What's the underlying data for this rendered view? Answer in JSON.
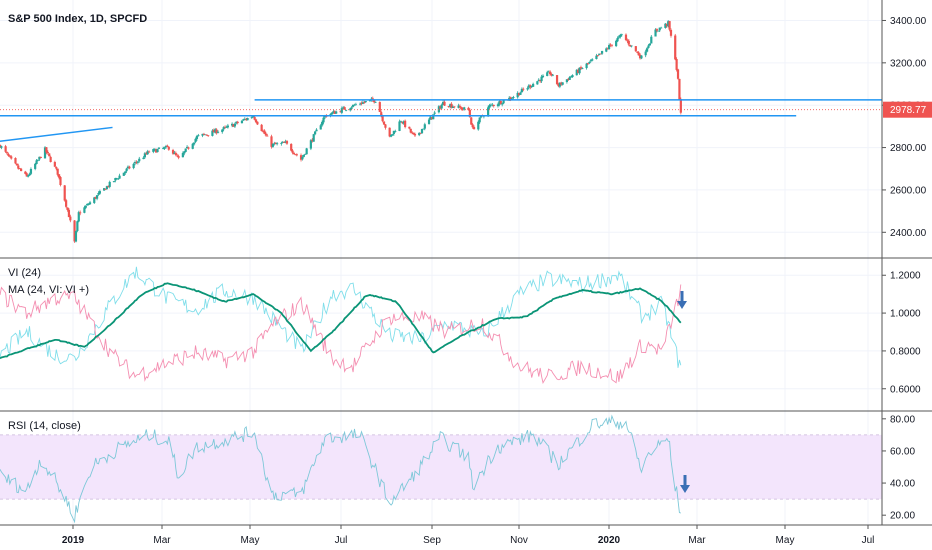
{
  "colors": {
    "up": "#26a69a",
    "down": "#ef5350",
    "trendline": "#2196f3",
    "vi_plus": "#80deea",
    "vi_minus": "#f48fb1",
    "ma": "#0a9476",
    "rsi": "#7ec8d8",
    "rsi_band": "#f3e5fc",
    "rsi_band_border": "#c9b6d8",
    "arrow": "#3a6fb5",
    "price_tag": "#ef5350",
    "grid": "#f0f3fa",
    "pane_border": "#555555"
  },
  "annotation_icons": [
    "arrow-down-icon",
    "arrow-down-icon"
  ],
  "chart_data": [
    {
      "type": "candlestick",
      "title": "S&P 500 Index, 1D, SPCFD",
      "y_ticks": [
        "3400.00",
        "3200.00",
        "3000.00",
        "2800.00",
        "2600.00",
        "2400.00"
      ],
      "ylim": [
        2340,
        3440
      ],
      "last_price": "2978.77",
      "x_ticks": [
        "2019",
        "Mar",
        "May",
        "Jul",
        "Sep",
        "Nov",
        "2020",
        "Mar",
        "May",
        "Jul"
      ],
      "xlim": [
        "2018-11-01",
        "2020-07-20"
      ],
      "anchors": [
        [
          "2018-11-01",
          2810
        ],
        [
          "2018-11-10",
          2730
        ],
        [
          "2018-11-20",
          2660
        ],
        [
          "2018-11-28",
          2740
        ],
        [
          "2018-12-03",
          2790
        ],
        [
          "2018-12-12",
          2680
        ],
        [
          "2018-12-20",
          2480
        ],
        [
          "2018-12-24",
          2351
        ],
        [
          "2018-12-27",
          2490
        ],
        [
          "2019-01-04",
          2540
        ],
        [
          "2019-01-15",
          2610
        ],
        [
          "2019-01-31",
          2700
        ],
        [
          "2019-02-15",
          2780
        ],
        [
          "2019-03-01",
          2800
        ],
        [
          "2019-03-08",
          2745
        ],
        [
          "2019-03-21",
          2850
        ],
        [
          "2019-04-10",
          2890
        ],
        [
          "2019-04-30",
          2950
        ],
        [
          "2019-05-13",
          2812
        ],
        [
          "2019-05-23",
          2820
        ],
        [
          "2019-06-03",
          2744
        ],
        [
          "2019-06-20",
          2950
        ],
        [
          "2019-07-15",
          3010
        ],
        [
          "2019-07-26",
          3025
        ],
        [
          "2019-08-05",
          2844
        ],
        [
          "2019-08-13",
          2930
        ],
        [
          "2019-08-23",
          2847
        ],
        [
          "2019-09-12",
          3010
        ],
        [
          "2019-09-30",
          2976
        ],
        [
          "2019-10-03",
          2887
        ],
        [
          "2019-10-15",
          2995
        ],
        [
          "2019-10-31",
          3037
        ],
        [
          "2019-11-27",
          3153
        ],
        [
          "2019-12-03",
          3093
        ],
        [
          "2019-12-31",
          3230
        ],
        [
          "2020-01-17",
          3330
        ],
        [
          "2020-01-31",
          3225
        ],
        [
          "2020-02-10",
          3352
        ],
        [
          "2020-02-19",
          3386
        ],
        [
          "2020-02-24",
          3225
        ],
        [
          "2020-02-26",
          3116
        ],
        [
          "2020-02-28",
          2954
        ]
      ],
      "trendlines": [
        {
          "from": [
            "2018-11-01",
            2830
          ],
          "to": [
            "2019-01-20",
            2895
          ]
        },
        {
          "from": [
            "2018-11-01",
            2950
          ],
          "to": [
            "2020-05-20",
            2950
          ]
        },
        {
          "from": [
            "2019-05-01",
            3025
          ],
          "to": [
            "2020-07-20",
            3025
          ]
        }
      ]
    },
    {
      "type": "line",
      "series": [
        {
          "name": "VI (24)",
          "indicator": "vi"
        },
        {
          "name": "MA (24, VI: VI +)",
          "indicator": "ma"
        }
      ],
      "y_ticks": [
        "1.2000",
        "1.0000",
        "0.8000",
        "0.6000"
      ],
      "ylim": [
        0.53,
        1.27
      ],
      "vi_plus_anchors": [
        [
          "2018-11-01",
          0.78
        ],
        [
          "2018-11-20",
          0.9
        ],
        [
          "2018-12-10",
          0.78
        ],
        [
          "2018-12-24",
          0.76
        ],
        [
          "2019-01-20",
          1.06
        ],
        [
          "2019-02-05",
          1.22
        ],
        [
          "2019-03-01",
          1.07
        ],
        [
          "2019-03-20",
          1.02
        ],
        [
          "2019-04-10",
          1.12
        ],
        [
          "2019-05-01",
          1.08
        ],
        [
          "2019-05-15",
          0.96
        ],
        [
          "2019-06-04",
          0.8
        ],
        [
          "2019-06-25",
          1.1
        ],
        [
          "2019-07-10",
          1.13
        ],
        [
          "2019-08-05",
          0.88
        ],
        [
          "2019-08-28",
          0.86
        ],
        [
          "2019-09-15",
          0.95
        ],
        [
          "2019-10-10",
          0.88
        ],
        [
          "2019-11-05",
          1.1
        ],
        [
          "2019-11-25",
          1.18
        ],
        [
          "2019-12-20",
          1.15
        ],
        [
          "2020-01-15",
          1.2
        ],
        [
          "2020-02-01",
          0.98
        ],
        [
          "2020-02-15",
          1.05
        ],
        [
          "2020-02-28",
          0.7
        ]
      ],
      "vi_minus_anchors": [
        [
          "2018-11-01",
          1.1
        ],
        [
          "2018-11-20",
          1.0
        ],
        [
          "2018-12-10",
          1.08
        ],
        [
          "2018-12-24",
          1.08
        ],
        [
          "2019-01-20",
          0.78
        ],
        [
          "2019-02-05",
          0.67
        ],
        [
          "2019-03-01",
          0.74
        ],
        [
          "2019-03-20",
          0.79
        ],
        [
          "2019-04-10",
          0.75
        ],
        [
          "2019-05-01",
          0.8
        ],
        [
          "2019-05-15",
          0.95
        ],
        [
          "2019-06-04",
          1.05
        ],
        [
          "2019-06-25",
          0.76
        ],
        [
          "2019-07-10",
          0.72
        ],
        [
          "2019-08-05",
          0.98
        ],
        [
          "2019-08-28",
          0.97
        ],
        [
          "2019-09-15",
          0.9
        ],
        [
          "2019-10-10",
          0.95
        ],
        [
          "2019-11-05",
          0.72
        ],
        [
          "2019-11-25",
          0.66
        ],
        [
          "2019-12-20",
          0.72
        ],
        [
          "2020-01-15",
          0.66
        ],
        [
          "2020-02-01",
          0.84
        ],
        [
          "2020-02-15",
          0.8
        ],
        [
          "2020-02-28",
          1.12
        ]
      ],
      "ma_anchors": [
        [
          "2018-11-01",
          0.76
        ],
        [
          "2018-11-20",
          0.81
        ],
        [
          "2018-12-10",
          0.86
        ],
        [
          "2018-12-31",
          0.82
        ],
        [
          "2019-01-20",
          0.95
        ],
        [
          "2019-02-10",
          1.1
        ],
        [
          "2019-02-28",
          1.16
        ],
        [
          "2019-03-20",
          1.12
        ],
        [
          "2019-04-10",
          1.06
        ],
        [
          "2019-04-30",
          1.1
        ],
        [
          "2019-05-20",
          1.0
        ],
        [
          "2019-06-10",
          0.8
        ],
        [
          "2019-06-28",
          0.92
        ],
        [
          "2019-07-20",
          1.1
        ],
        [
          "2019-08-10",
          1.06
        ],
        [
          "2019-09-05",
          0.79
        ],
        [
          "2019-09-25",
          0.88
        ],
        [
          "2019-10-20",
          0.97
        ],
        [
          "2019-11-10",
          0.98
        ],
        [
          "2019-12-01",
          1.08
        ],
        [
          "2019-12-20",
          1.12
        ],
        [
          "2020-01-10",
          1.1
        ],
        [
          "2020-01-30",
          1.13
        ],
        [
          "2020-02-15",
          1.06
        ],
        [
          "2020-02-28",
          0.95
        ]
      ]
    },
    {
      "type": "line",
      "series": [
        {
          "name": "RSI (14, close)"
        }
      ],
      "y_ticks": [
        "80.00",
        "60.00",
        "40.00",
        "20.00"
      ],
      "ylim": [
        17,
        83
      ],
      "band": [
        30,
        70
      ],
      "anchors": [
        [
          "2018-11-01",
          45
        ],
        [
          "2018-11-20",
          35
        ],
        [
          "2018-11-30",
          55
        ],
        [
          "2018-12-10",
          42
        ],
        [
          "2018-12-24",
          20
        ],
        [
          "2019-01-05",
          50
        ],
        [
          "2019-01-25",
          62
        ],
        [
          "2019-02-15",
          70
        ],
        [
          "2019-03-01",
          66
        ],
        [
          "2019-03-08",
          44
        ],
        [
          "2019-03-20",
          62
        ],
        [
          "2019-04-15",
          68
        ],
        [
          "2019-05-01",
          72
        ],
        [
          "2019-05-13",
          33
        ],
        [
          "2019-06-03",
          33
        ],
        [
          "2019-06-20",
          68
        ],
        [
          "2019-07-15",
          70
        ],
        [
          "2019-08-05",
          28
        ],
        [
          "2019-08-20",
          42
        ],
        [
          "2019-09-10",
          68
        ],
        [
          "2019-09-30",
          56
        ],
        [
          "2019-10-03",
          38
        ],
        [
          "2019-10-20",
          62
        ],
        [
          "2019-11-15",
          70
        ],
        [
          "2019-12-03",
          52
        ],
        [
          "2019-12-28",
          77
        ],
        [
          "2020-01-20",
          78
        ],
        [
          "2020-01-31",
          48
        ],
        [
          "2020-02-05",
          58
        ],
        [
          "2020-02-19",
          68
        ],
        [
          "2020-02-24",
          38
        ],
        [
          "2020-02-28",
          21
        ]
      ]
    }
  ]
}
